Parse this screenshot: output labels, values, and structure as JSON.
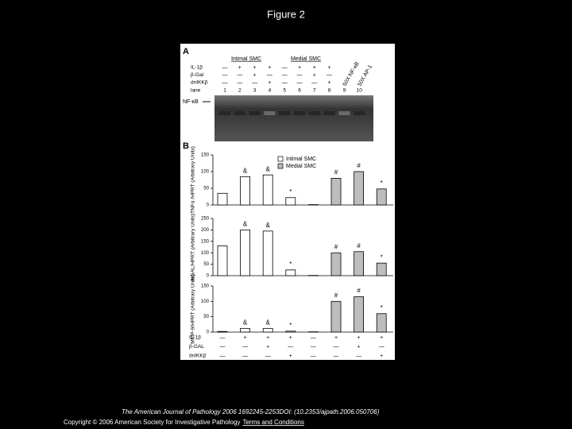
{
  "title": "Figure 2",
  "figure": {
    "panel_a": {
      "label": "A",
      "groups": [
        "Intimal SMC",
        "Medial SMC"
      ],
      "competitors": [
        "50X NF-κB",
        "50X AP-1"
      ],
      "rows": [
        {
          "label": "IL-1β",
          "signs": [
            "—",
            "+",
            "+",
            "+",
            "—",
            "+",
            "+",
            "+"
          ]
        },
        {
          "label": "β-Gal",
          "signs": [
            "—",
            "—",
            "+",
            "—",
            "—",
            "—",
            "+",
            "—"
          ]
        },
        {
          "label": "dnIKKβ",
          "signs": [
            "—",
            "—",
            "—",
            "+",
            "—",
            "—",
            "—",
            "+"
          ]
        }
      ],
      "lane_label": "lane",
      "lanes": [
        "1",
        "2",
        "3",
        "4",
        "5",
        "6",
        "7",
        "8",
        "9",
        "10"
      ],
      "band_label": "NF-κB"
    },
    "panel_b": {
      "label": "B",
      "legend": [
        "Intimal SMC",
        "Medial SMC"
      ],
      "colors": [
        "#ffffff",
        "#bdbdbd"
      ],
      "charts": [
        {
          "ylabel": "TNFα /HPRT (Arbitrary Units)",
          "ylim": [
            0,
            150
          ],
          "yticks": [
            0,
            50,
            100,
            150
          ],
          "values": [
            35,
            85,
            90,
            22,
            1,
            80,
            100,
            48
          ],
          "annotations": [
            null,
            "&",
            "&",
            "*",
            null,
            "#",
            "#",
            "*"
          ]
        },
        {
          "ylabel": "NGAL/HPRT (Arbitrary Units)",
          "ylim": [
            0,
            250
          ],
          "yticks": [
            0,
            50,
            100,
            150,
            200,
            250
          ],
          "values": [
            130,
            200,
            195,
            25,
            1,
            100,
            105,
            55
          ],
          "annotations": [
            null,
            "&",
            "&",
            "*",
            null,
            "#",
            "#",
            "*"
          ]
        },
        {
          "ylabel": "MMP-9/HPRT (Arbitrary Units)",
          "ylim": [
            0,
            150
          ],
          "yticks": [
            0,
            50,
            100,
            150
          ],
          "values": [
            2,
            12,
            12,
            3,
            1,
            100,
            115,
            60
          ],
          "annotations": [
            null,
            "&",
            "&",
            "*",
            null,
            "#",
            "#",
            "*"
          ]
        }
      ],
      "rows": [
        {
          "label": "IL-1β",
          "signs": [
            "—",
            "+",
            "+",
            "+",
            "—",
            "+",
            "+",
            "+"
          ]
        },
        {
          "label": "β-GAL",
          "signs": [
            "—",
            "—",
            "+",
            "—",
            "—",
            "—",
            "+",
            "—"
          ]
        },
        {
          "label": "dnIKKβ",
          "signs": [
            "—",
            "—",
            "—",
            "+",
            "—",
            "—",
            "—",
            "+"
          ]
        }
      ]
    }
  },
  "footer": {
    "citation": "The American Journal of Pathology 2006 1692245-2253DOI: (10.2353/ajpath.2006.050706)",
    "copyright": "Copyright © 2006 American Society for Investigative Pathology",
    "link": "Terms and Conditions"
  }
}
